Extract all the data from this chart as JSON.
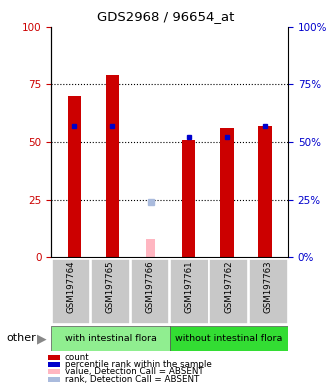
{
  "title": "GDS2968 / 96654_at",
  "samples": [
    "GSM197764",
    "GSM197765",
    "GSM197766",
    "GSM197761",
    "GSM197762",
    "GSM197763"
  ],
  "count_values": [
    70,
    79,
    0,
    51,
    56,
    57
  ],
  "count_absent": [
    0,
    0,
    8,
    0,
    0,
    0
  ],
  "percentile_values": [
    57,
    57,
    0,
    52,
    52,
    57
  ],
  "percentile_absent": [
    0,
    0,
    24,
    0,
    0,
    0
  ],
  "ylim": [
    0,
    100
  ],
  "y_ticks": [
    0,
    25,
    50,
    75,
    100
  ],
  "left_tick_color": "#CC0000",
  "right_tick_color": "#0000CC",
  "bar_color_count": "#CC0000",
  "bar_color_percentile": "#0000CC",
  "bar_color_absent_count": "#FFB6C1",
  "bar_color_absent_percentile": "#AABBDD",
  "group1_label": "with intestinal flora",
  "group2_label": "without intestinal flora",
  "group1_bg": "#90EE90",
  "group2_bg": "#33DD33",
  "sample_bg": "#C8C8C8",
  "legend_items": [
    {
      "color": "#CC0000",
      "label": "count"
    },
    {
      "color": "#0000CC",
      "label": "percentile rank within the sample"
    },
    {
      "color": "#FFB6C1",
      "label": "value, Detection Call = ABSENT"
    },
    {
      "color": "#AABBDD",
      "label": "rank, Detection Call = ABSENT"
    }
  ]
}
